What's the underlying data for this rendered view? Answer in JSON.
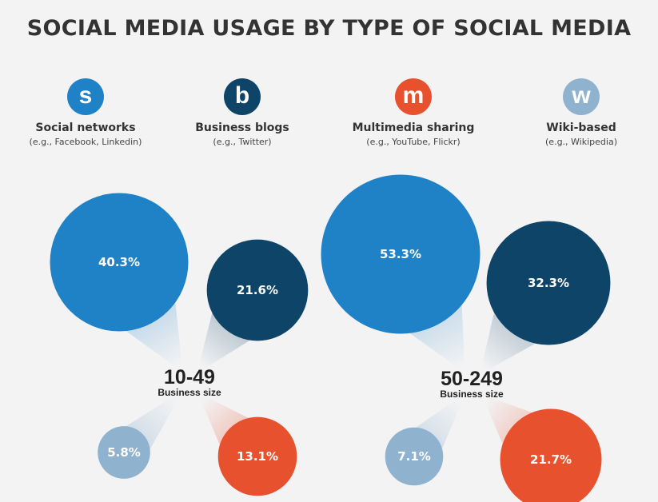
{
  "title": "SOCIAL MEDIA USAGE BY TYPE OF SOCIAL MEDIA",
  "legend": [
    {
      "letter": "s",
      "name": "Social networks",
      "example": "(e.g., Facebook, Linkedin)",
      "color": "#1f82c6"
    },
    {
      "letter": "b",
      "name": "Business blogs",
      "example": "(e.g., Twitter)",
      "color": "#0e4468"
    },
    {
      "letter": "m",
      "name": "Multimedia sharing",
      "example": "(e.g., YouTube, Flickr)",
      "color": "#e8512d"
    },
    {
      "letter": "w",
      "name": "Wiki-based",
      "example": "(e.g., Wikipedia)",
      "color": "#8fb2cf"
    }
  ],
  "chart_data": {
    "type": "bubble",
    "unit": "%",
    "categories": [
      "Social networks",
      "Business blogs",
      "Multimedia sharing",
      "Wiki-based"
    ],
    "groups": [
      {
        "label": "10-49",
        "sublabel": "Business size",
        "values": [
          40.3,
          21.6,
          13.1,
          5.8
        ]
      },
      {
        "label": "50-249",
        "sublabel": "Business size",
        "values": [
          53.3,
          32.3,
          21.7,
          7.1
        ]
      }
    ]
  }
}
